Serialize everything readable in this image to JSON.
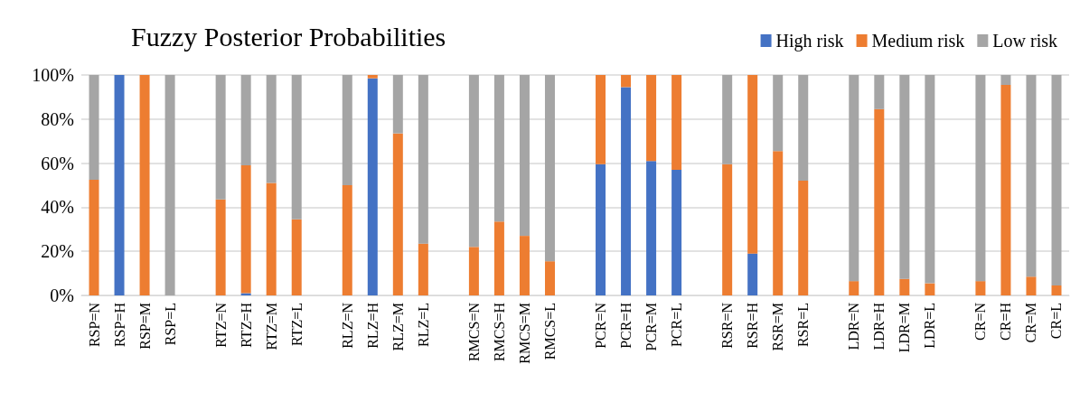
{
  "chart_data": {
    "type": "bar",
    "stacked": true,
    "title": "Fuzzy Posterior Probabilities",
    "categories": [
      "RSP=N",
      "RSP=H",
      "RSP=M",
      "RSP=L",
      null,
      "RTZ=N",
      "RTZ=H",
      "RTZ=M",
      "RTZ=L",
      null,
      "RLZ=N",
      "RLZ=H",
      "RLZ=M",
      "RLZ=L",
      null,
      "RMCS=N",
      "RMCS=H",
      "RMCS=M",
      "RMCS=L",
      null,
      "PCR=N",
      "PCR=H",
      "PCR=M",
      "PCR=L",
      null,
      "RSR=N",
      "RSR=H",
      "RSR=M",
      "RSR=L",
      null,
      "LDR=N",
      "LDR=H",
      "LDR=M",
      "LDR=L",
      null,
      "CR=N",
      "CR=H",
      "CR=M",
      "CR=L"
    ],
    "series": [
      {
        "name": "High risk",
        "color": "#4472c4",
        "values": [
          0,
          100,
          0,
          0,
          null,
          0,
          1,
          0,
          0,
          null,
          0,
          98.5,
          0,
          0,
          null,
          0,
          0,
          0,
          0,
          null,
          59.5,
          94.5,
          61,
          57,
          null,
          0,
          19,
          0,
          0,
          null,
          0,
          0,
          0,
          0,
          null,
          0,
          0,
          0,
          0
        ]
      },
      {
        "name": "Medium risk",
        "color": "#ed7d31",
        "values": [
          52.5,
          0,
          100,
          0,
          null,
          43.5,
          58,
          51,
          34.5,
          null,
          50,
          1.5,
          73.5,
          23.5,
          null,
          22,
          33.5,
          27,
          15.5,
          null,
          40.5,
          5.5,
          39,
          43,
          null,
          59.5,
          81,
          65.5,
          52,
          null,
          6.5,
          84.5,
          7.5,
          5.5,
          null,
          6.5,
          95.5,
          8.5,
          4.5
        ]
      },
      {
        "name": "Low risk",
        "color": "#a5a5a5",
        "values": [
          47.5,
          0,
          0,
          100,
          null,
          56.5,
          41,
          49,
          65.5,
          null,
          50,
          0,
          26.5,
          76.5,
          null,
          78,
          66.5,
          73,
          84.5,
          null,
          0,
          0,
          0,
          0,
          null,
          40.5,
          0,
          34.5,
          48,
          null,
          93.5,
          15.5,
          92.5,
          94.5,
          null,
          93.5,
          4.5,
          91.5,
          95.5
        ]
      }
    ],
    "ylim": [
      0,
      100
    ],
    "yticks": [
      {
        "value": 0,
        "label": "0%"
      },
      {
        "value": 20,
        "label": "20%"
      },
      {
        "value": 40,
        "label": "40%"
      },
      {
        "value": 60,
        "label": "60%"
      },
      {
        "value": 80,
        "label": "80%"
      },
      {
        "value": 100,
        "label": "100%"
      }
    ],
    "grid": "y",
    "legend": "top right"
  }
}
